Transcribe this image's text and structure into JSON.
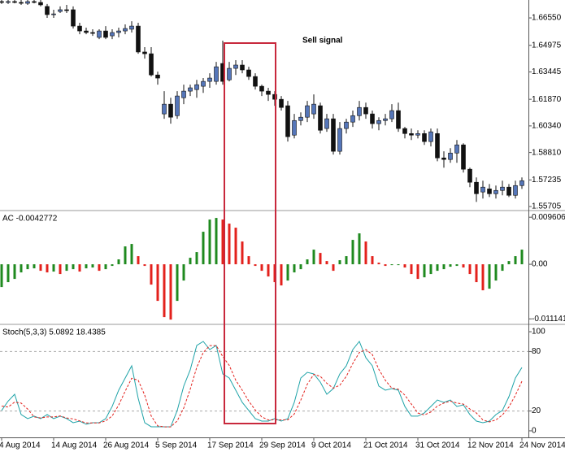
{
  "chart_data": [
    {
      "type": "candlestick",
      "annotation": "Sell signal",
      "up_color": "#5576b9",
      "down_color": "#111111",
      "open": [
        1.6749,
        1.6744,
        1.6749,
        1.6744,
        1.6739,
        1.6749,
        1.6744,
        1.6721,
        1.6674,
        1.6692,
        1.6702,
        1.6702,
        1.6608,
        1.658,
        1.6571,
        1.6543,
        1.658,
        1.6552,
        1.6571,
        1.658,
        1.659,
        1.6608,
        1.6459,
        1.6449,
        1.6327,
        1.6103,
        1.6159,
        1.6093,
        1.6196,
        1.6234,
        1.6243,
        1.6262,
        1.629,
        1.629,
        1.6393,
        1.6299,
        1.6365,
        1.6384,
        1.6356,
        1.6318,
        1.6262,
        1.6234,
        1.6215,
        1.6187,
        1.615,
        1.5981,
        1.6065,
        1.6084,
        1.6103,
        1.615,
        1.6019,
        1.6075,
        1.5888,
        1.6019,
        1.6056,
        1.6093,
        1.614,
        1.6103,
        1.6047,
        1.6065,
        1.6075,
        1.6122,
        1.6019,
        1.599,
        1.5981,
        1.599,
        1.5944,
        1.599,
        1.585,
        1.5841,
        1.5878,
        1.5925,
        1.5785,
        1.571,
        1.5654,
        1.5672,
        1.5644,
        1.5663,
        1.5682,
        1.5635,
        1.5691
      ],
      "high": [
        1.6758,
        1.6758,
        1.6758,
        1.6758,
        1.6758,
        1.6758,
        1.6758,
        1.6735,
        1.6702,
        1.6721,
        1.673,
        1.6721,
        1.6627,
        1.6599,
        1.659,
        1.659,
        1.6608,
        1.659,
        1.6599,
        1.6618,
        1.6636,
        1.6627,
        1.6487,
        1.6487,
        1.6346,
        1.6234,
        1.6196,
        1.6234,
        1.6271,
        1.6271,
        1.6299,
        1.6309,
        1.6337,
        1.6402,
        1.6524,
        1.6402,
        1.6412,
        1.6412,
        1.6374,
        1.6337,
        1.6271,
        1.6253,
        1.6234,
        1.6206,
        1.6178,
        1.6103,
        1.6112,
        1.6178,
        1.6215,
        1.6168,
        1.6103,
        1.6103,
        1.6056,
        1.6075,
        1.6122,
        1.6178,
        1.6168,
        1.6122,
        1.6084,
        1.6103,
        1.6159,
        1.6168,
        1.6028,
        1.6019,
        1.6009,
        1.6009,
        1.6019,
        1.6019,
        1.5888,
        1.5906,
        1.5953,
        1.5934,
        1.5794,
        1.5738,
        1.5719,
        1.57,
        1.5691,
        1.5719,
        1.57,
        1.5719,
        1.5738
      ],
      "low": [
        1.6735,
        1.6735,
        1.6739,
        1.673,
        1.673,
        1.6739,
        1.6721,
        1.6655,
        1.6655,
        1.6683,
        1.6683,
        1.6594,
        1.6561,
        1.6561,
        1.6552,
        1.6533,
        1.6533,
        1.6533,
        1.6543,
        1.6561,
        1.6571,
        1.6449,
        1.6421,
        1.6318,
        1.6271,
        1.6075,
        1.6047,
        1.6075,
        1.6159,
        1.6206,
        1.6196,
        1.6224,
        1.6253,
        1.6271,
        1.6271,
        1.629,
        1.6327,
        1.6337,
        1.6299,
        1.6243,
        1.6206,
        1.6178,
        1.615,
        1.6122,
        1.5944,
        1.5962,
        1.6037,
        1.6056,
        1.6075,
        1.599,
        1.6,
        1.5869,
        1.5869,
        1.599,
        1.6028,
        1.6065,
        1.6075,
        1.6019,
        1.6009,
        1.6037,
        1.6056,
        1.6,
        1.5962,
        1.5953,
        1.5962,
        1.5925,
        1.5916,
        1.5831,
        1.5794,
        1.5822,
        1.5822,
        1.5766,
        1.5682,
        1.5597,
        1.5616,
        1.5625,
        1.5616,
        1.5635,
        1.5625,
        1.5616,
        1.5672
      ],
      "close": [
        1.6744,
        1.6749,
        1.6744,
        1.6739,
        1.6749,
        1.6744,
        1.673,
        1.6674,
        1.6678,
        1.6702,
        1.6697,
        1.6608,
        1.658,
        1.6571,
        1.6566,
        1.658,
        1.6543,
        1.6571,
        1.658,
        1.6594,
        1.6608,
        1.6459,
        1.6449,
        1.6327,
        1.6309,
        1.6159,
        1.6084,
        1.6206,
        1.6234,
        1.6253,
        1.6271,
        1.629,
        1.6309,
        1.6374,
        1.629,
        1.6365,
        1.6384,
        1.6356,
        1.6318,
        1.6262,
        1.6234,
        1.6215,
        1.6187,
        1.614,
        1.5972,
        1.6065,
        1.6084,
        1.615,
        1.6159,
        1.6009,
        1.6075,
        1.5888,
        1.6019,
        1.6056,
        1.6093,
        1.614,
        1.6103,
        1.6047,
        1.6065,
        1.6075,
        1.6122,
        1.6019,
        1.599,
        1.5981,
        1.599,
        1.5944,
        1.6,
        1.585,
        1.5841,
        1.5878,
        1.5925,
        1.5785,
        1.571,
        1.5644,
        1.5682,
        1.5644,
        1.5663,
        1.5682,
        1.5635,
        1.5691,
        1.5719
      ],
      "ylim": [
        1.5552,
        1.6758
      ],
      "yticks": [
        1.55705,
        1.57235,
        {
          "value": 1.5881,
          "label": "1.58810"
        },
        {
          "value": 1.6034,
          "label": "1.60340"
        },
        {
          "value": 1.6187,
          "label": "1.61870"
        },
        1.63445,
        1.64975,
        {
          "value": 1.6655,
          "label": "1.66550"
        }
      ]
    },
    {
      "type": "bar",
      "label": "AC -0.0042772",
      "up_color": "#1f8a1f",
      "down_color": "#e3211c",
      "values": [
        -0.00465,
        -0.00365,
        -0.00299,
        -0.00166,
        -0.001,
        -0.00083,
        -0.00133,
        -0.00166,
        -0.00149,
        -0.00199,
        -0.00133,
        -0.001,
        -0.00149,
        -0.00083,
        -0.00066,
        -0.00133,
        -0.001,
        -0.00033,
        0.001,
        0.00365,
        0.00415,
        0.00166,
        -0.00033,
        -0.00415,
        -0.00747,
        -0.01079,
        -0.01129,
        -0.00747,
        -0.00332,
        0.00133,
        0.00249,
        0.00664,
        0.00913,
        0.00946,
        0.00913,
        0.0083,
        0.00747,
        0.00465,
        0.00166,
        -0.00033,
        -0.00133,
        -0.00249,
        -0.00365,
        -0.00432,
        -0.00332,
        -0.00166,
        -0.001,
        0.001,
        0.00299,
        0.00232,
        0.00066,
        -0.00133,
        0.00083,
        0.00166,
        0.00498,
        0.00631,
        0.00465,
        0.00166,
        0.00033,
        -0.00033,
        -0.00017,
        -0.00017,
        -0.00066,
        -0.00199,
        -0.00299,
        -0.00266,
        -0.00199,
        -0.00133,
        -0.001,
        -0.0005,
        -0.00033,
        -0.00066,
        -0.00199,
        -0.00365,
        -0.00531,
        -0.00498,
        -0.00332,
        -0.00133,
        0.00066,
        0.00166,
        0.00299
      ],
      "ylim": [
        -0.0121,
        0.0108
      ],
      "yticks": [
        -0.011141,
        {
          "value": 0,
          "label": "0.00"
        },
        0.009606
      ]
    },
    {
      "type": "line",
      "label": "Stoch(5,3,3) 5.0892 18.4385",
      "categories": [
        "4 Aug 2014",
        null,
        null,
        null,
        null,
        null,
        null,
        null,
        "14 Aug 2014",
        null,
        null,
        null,
        null,
        null,
        null,
        null,
        "26 Aug 2014",
        null,
        null,
        null,
        null,
        null,
        null,
        null,
        "5 Sep 2014",
        null,
        null,
        null,
        null,
        null,
        null,
        null,
        "17 Sep 2014",
        null,
        null,
        null,
        null,
        null,
        null,
        null,
        "29 Sep 2014",
        null,
        null,
        null,
        null,
        null,
        null,
        null,
        "9 Oct 2014",
        null,
        null,
        null,
        null,
        null,
        null,
        null,
        "21 Oct 2014",
        null,
        null,
        null,
        null,
        null,
        null,
        null,
        "31 Oct 2014",
        null,
        null,
        null,
        null,
        null,
        null,
        null,
        "12 Nov 2014",
        null,
        null,
        null,
        null,
        null,
        null,
        null,
        "24 Nov 2014"
      ],
      "series": [
        {
          "color": "#1fa3a8",
          "dashed": false,
          "values": [
            20.5,
            30,
            36.9,
            16.4,
            12.3,
            14.8,
            12.3,
            16.4,
            12.3,
            14.8,
            12.3,
            8.2,
            9.8,
            6.6,
            8.2,
            8.2,
            12.3,
            24.6,
            41,
            53.3,
            65.6,
            32.8,
            8.2,
            4.1,
            4.1,
            4.1,
            4.1,
            20.5,
            45.1,
            61.5,
            86.1,
            90.2,
            82,
            86.1,
            57.4,
            53.3,
            41,
            28.7,
            20.5,
            12.3,
            9.8,
            9.8,
            12.3,
            9.8,
            12.3,
            28.7,
            53.3,
            59,
            57.4,
            49.2,
            36.9,
            42.6,
            57.4,
            65.6,
            82,
            90.2,
            73.8,
            65.6,
            45.1,
            41,
            42.6,
            41,
            24.6,
            14.8,
            14.8,
            18,
            24.6,
            31.1,
            28.7,
            31.1,
            24.6,
            26.2,
            16.4,
            9.8,
            8.2,
            9.8,
            16.4,
            20.5,
            34.4,
            53.3,
            63.9
          ]
        },
        {
          "color": "#e3211c",
          "dashed": true,
          "values": [
            25,
            24,
            29,
            28,
            22,
            14,
            13,
            14,
            14,
            15,
            13,
            12,
            10,
            8,
            8,
            8,
            10,
            15,
            26,
            40,
            53,
            51,
            36,
            15,
            5,
            4,
            4,
            10,
            23,
            42,
            64,
            79,
            86,
            86,
            75,
            66,
            51,
            41,
            30,
            21,
            14,
            11,
            11,
            11,
            11,
            17,
            31,
            47,
            57,
            55,
            48,
            43,
            46,
            55,
            68,
            79,
            82,
            77,
            62,
            51,
            43,
            42,
            36,
            27,
            18,
            16,
            19,
            25,
            28,
            30,
            28,
            27,
            22,
            18,
            11,
            9,
            11,
            16,
            24,
            36,
            50
          ]
        }
      ],
      "levels": [
        20,
        80
      ],
      "ylim": [
        -6.6,
        106.6
      ],
      "yticks": [
        0,
        20,
        80,
        100
      ]
    }
  ]
}
